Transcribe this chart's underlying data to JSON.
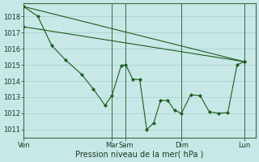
{
  "bg": "#c8e8e8",
  "grid_color": "#a8cccc",
  "lc": "#1a5c1a",
  "lw": 0.8,
  "ms": 2.2,
  "ylim": [
    1010.5,
    1018.8
  ],
  "yticks": [
    1011,
    1012,
    1013,
    1014,
    1015,
    1016,
    1017,
    1018
  ],
  "xlabel": "Pression niveau de la mer( hPa )",
  "xlim": [
    0,
    100
  ],
  "xtick_pos": [
    0,
    38,
    44,
    68,
    95
  ],
  "xtick_labels": [
    "Ven",
    "Mar",
    "Sam",
    "Dim",
    "Lun"
  ],
  "line1_x": [
    0,
    95
  ],
  "line1_y": [
    1018.6,
    1015.2
  ],
  "line2_x": [
    0,
    95
  ],
  "line2_y": [
    1017.35,
    1015.2
  ],
  "line3_x": [
    0,
    6,
    12,
    18,
    25,
    30,
    35,
    38,
    42,
    44,
    47,
    50,
    53,
    56,
    59,
    62,
    65,
    68,
    72,
    76,
    80,
    84,
    88,
    92,
    95
  ],
  "line3_y": [
    1018.6,
    1018.0,
    1016.2,
    1015.3,
    1014.4,
    1013.5,
    1012.5,
    1013.1,
    1014.95,
    1015.0,
    1014.1,
    1014.1,
    1011.0,
    1011.4,
    1012.8,
    1012.8,
    1012.2,
    1012.0,
    1013.15,
    1013.1,
    1012.1,
    1012.0,
    1012.05,
    1015.0,
    1015.2
  ]
}
